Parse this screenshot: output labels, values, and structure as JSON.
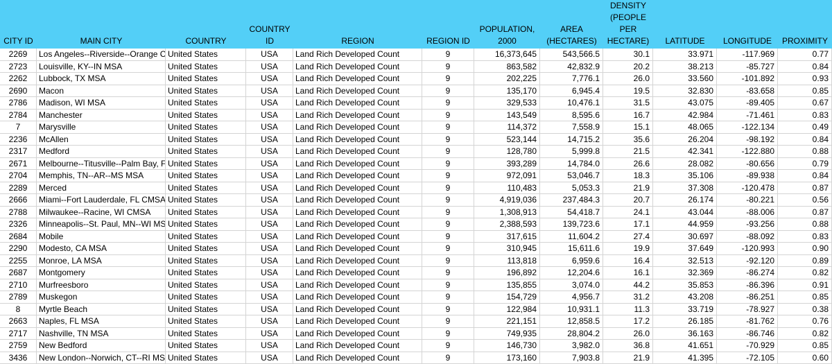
{
  "columns": [
    {
      "key": "city_id",
      "lines": [
        "CITY ID"
      ]
    },
    {
      "key": "main_city",
      "lines": [
        "MAIN CITY"
      ]
    },
    {
      "key": "country",
      "lines": [
        "COUNTRY"
      ]
    },
    {
      "key": "country_id",
      "lines": [
        "COUNTRY",
        "ID"
      ]
    },
    {
      "key": "region",
      "lines": [
        "REGION"
      ]
    },
    {
      "key": "region_id",
      "lines": [
        "REGION ID"
      ]
    },
    {
      "key": "population",
      "lines": [
        "POPULATION,",
        "2000"
      ]
    },
    {
      "key": "area",
      "lines": [
        "AREA",
        "(HECTARES)"
      ]
    },
    {
      "key": "density",
      "lines": [
        "DENSITY",
        "(PEOPLE",
        "PER",
        "HECTARE)"
      ]
    },
    {
      "key": "latitude",
      "lines": [
        "LATITUDE"
      ]
    },
    {
      "key": "longitude",
      "lines": [
        "LONGITUDE"
      ]
    },
    {
      "key": "proximity",
      "lines": [
        "PROXIMITY"
      ]
    }
  ],
  "rows": [
    [
      "2269",
      "Los Angeles--Riverside--Orange County",
      "United States",
      "USA",
      "Land Rich Developed Count",
      "9",
      "16,373,645",
      "543,566.5",
      "30.1",
      "33.971",
      "-117.969",
      "0.77"
    ],
    [
      "2723",
      "Louisville, KY--IN MSA",
      "United States",
      "USA",
      "Land Rich Developed Count",
      "9",
      "863,582",
      "42,832.9",
      "20.2",
      "38.213",
      "-85.727",
      "0.84"
    ],
    [
      "2262",
      "Lubbock, TX MSA",
      "United States",
      "USA",
      "Land Rich Developed Count",
      "9",
      "202,225",
      "7,776.1",
      "26.0",
      "33.560",
      "-101.892",
      "0.93"
    ],
    [
      "2690",
      "Macon",
      "United States",
      "USA",
      "Land Rich Developed Count",
      "9",
      "135,170",
      "6,945.4",
      "19.5",
      "32.830",
      "-83.658",
      "0.85"
    ],
    [
      "2786",
      "Madison, WI MSA",
      "United States",
      "USA",
      "Land Rich Developed Count",
      "9",
      "329,533",
      "10,476.1",
      "31.5",
      "43.075",
      "-89.405",
      "0.67"
    ],
    [
      "2784",
      "Manchester",
      "United States",
      "USA",
      "Land Rich Developed Count",
      "9",
      "143,549",
      "8,595.6",
      "16.7",
      "42.984",
      "-71.461",
      "0.83"
    ],
    [
      "7",
      "Marysville",
      "United States",
      "USA",
      "Land Rich Developed Count",
      "9",
      "114,372",
      "7,558.9",
      "15.1",
      "48.065",
      "-122.134",
      "0.49"
    ],
    [
      "2236",
      "McAllen",
      "United States",
      "USA",
      "Land Rich Developed Count",
      "9",
      "523,144",
      "14,715.2",
      "35.6",
      "26.204",
      "-98.192",
      "0.84"
    ],
    [
      "2317",
      "Medford",
      "United States",
      "USA",
      "Land Rich Developed Count",
      "9",
      "128,780",
      "5,999.8",
      "21.5",
      "42.341",
      "-122.880",
      "0.88"
    ],
    [
      "2671",
      "Melbourne--Titusville--Palm Bay, FL MSA",
      "United States",
      "USA",
      "Land Rich Developed Count",
      "9",
      "393,289",
      "14,784.0",
      "26.6",
      "28.082",
      "-80.656",
      "0.79"
    ],
    [
      "2704",
      "Memphis, TN--AR--MS MSA",
      "United States",
      "USA",
      "Land Rich Developed Count",
      "9",
      "972,091",
      "53,046.7",
      "18.3",
      "35.106",
      "-89.938",
      "0.84"
    ],
    [
      "2289",
      "Merced",
      "United States",
      "USA",
      "Land Rich Developed Count",
      "9",
      "110,483",
      "5,053.3",
      "21.9",
      "37.308",
      "-120.478",
      "0.87"
    ],
    [
      "2666",
      "Miami--Fort Lauderdale, FL CMSA",
      "United States",
      "USA",
      "Land Rich Developed Count",
      "9",
      "4,919,036",
      "237,484.3",
      "20.7",
      "26.174",
      "-80.221",
      "0.56"
    ],
    [
      "2788",
      "Milwaukee--Racine, WI CMSA",
      "United States",
      "USA",
      "Land Rich Developed Count",
      "9",
      "1,308,913",
      "54,418.7",
      "24.1",
      "43.044",
      "-88.006",
      "0.87"
    ],
    [
      "2326",
      "Minneapolis--St. Paul, MN--WI MSA",
      "United States",
      "USA",
      "Land Rich Developed Count",
      "9",
      "2,388,593",
      "139,723.6",
      "17.1",
      "44.959",
      "-93.256",
      "0.88"
    ],
    [
      "2684",
      "Mobile",
      "United States",
      "USA",
      "Land Rich Developed Count",
      "9",
      "317,615",
      "11,604.2",
      "27.4",
      "30.697",
      "-88.092",
      "0.83"
    ],
    [
      "2290",
      "Modesto, CA MSA",
      "United States",
      "USA",
      "Land Rich Developed Count",
      "9",
      "310,945",
      "15,611.6",
      "19.9",
      "37.649",
      "-120.993",
      "0.90"
    ],
    [
      "2255",
      "Monroe, LA MSA",
      "United States",
      "USA",
      "Land Rich Developed Count",
      "9",
      "113,818",
      "6,959.6",
      "16.4",
      "32.513",
      "-92.120",
      "0.89"
    ],
    [
      "2687",
      "Montgomery",
      "United States",
      "USA",
      "Land Rich Developed Count",
      "9",
      "196,892",
      "12,204.6",
      "16.1",
      "32.369",
      "-86.274",
      "0.82"
    ],
    [
      "2710",
      "Murfreesboro",
      "United States",
      "USA",
      "Land Rich Developed Count",
      "9",
      "135,855",
      "3,074.0",
      "44.2",
      "35.853",
      "-86.396",
      "0.91"
    ],
    [
      "2789",
      "Muskegon",
      "United States",
      "USA",
      "Land Rich Developed Count",
      "9",
      "154,729",
      "4,956.7",
      "31.2",
      "43.208",
      "-86.251",
      "0.85"
    ],
    [
      "8",
      "Myrtle Beach",
      "United States",
      "USA",
      "Land Rich Developed Count",
      "9",
      "122,984",
      "10,931.1",
      "11.3",
      "33.719",
      "-78.927",
      "0.38"
    ],
    [
      "2663",
      "Naples, FL MSA",
      "United States",
      "USA",
      "Land Rich Developed Count",
      "9",
      "221,151",
      "12,858.5",
      "17.2",
      "26.185",
      "-81.762",
      "0.76"
    ],
    [
      "2717",
      "Nashville, TN MSA",
      "United States",
      "USA",
      "Land Rich Developed Count",
      "9",
      "749,935",
      "28,804.2",
      "26.0",
      "36.163",
      "-86.746",
      "0.82"
    ],
    [
      "2759",
      "New Bedford",
      "United States",
      "USA",
      "Land Rich Developed Count",
      "9",
      "146,730",
      "3,982.0",
      "36.8",
      "41.651",
      "-70.929",
      "0.85"
    ],
    [
      "3436",
      "New London--Norwich, CT--RI MSA",
      "United States",
      "USA",
      "Land Rich Developed Count",
      "9",
      "173,160",
      "7,903.8",
      "21.9",
      "41.395",
      "-72.105",
      "0.60"
    ]
  ]
}
